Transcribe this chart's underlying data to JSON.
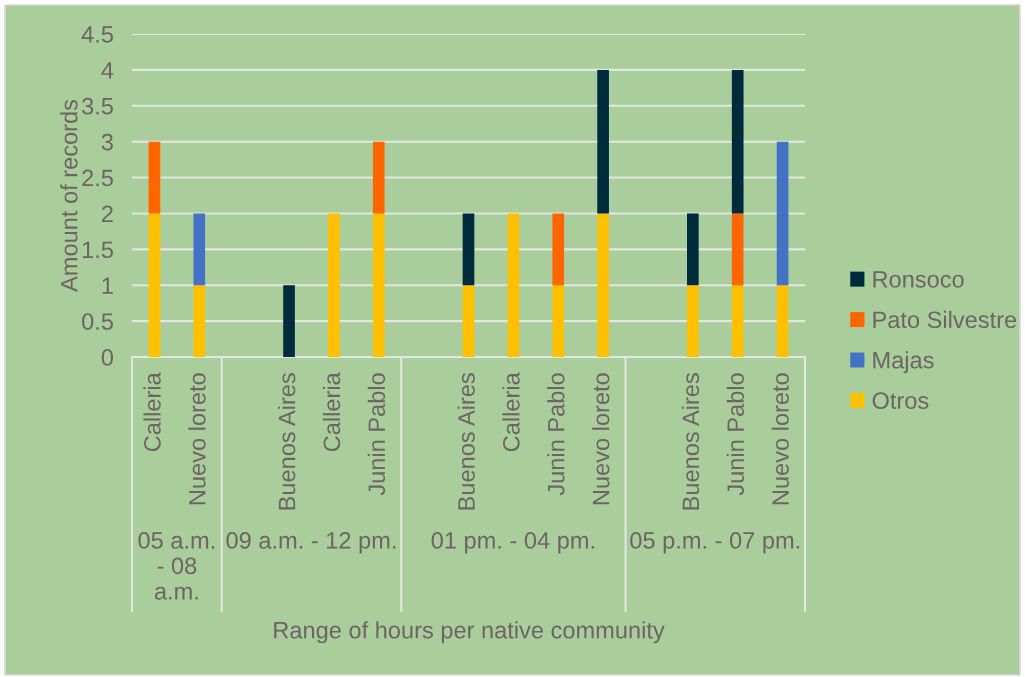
{
  "chart_data": {
    "type": "bar",
    "stacked": true,
    "xlabel": "Range of hours per native community",
    "ylabel": "Amount of records",
    "categories": [
      "Calleria",
      "Nuevo loreto",
      null,
      "Buenos Aires",
      "Calleria",
      "Junin Pablo",
      null,
      "Buenos Aires",
      "Calleria",
      "Junin Pablo",
      "Nuevo loreto",
      null,
      "Buenos Aires",
      "Junin Pablo",
      "Nuevo loreto"
    ],
    "series": [
      {
        "name": "Otros",
        "color": "#ffc000",
        "values": [
          2,
          1,
          null,
          null,
          2,
          2,
          null,
          1,
          2,
          1,
          2,
          null,
          1,
          1,
          1
        ]
      },
      {
        "name": "Majas",
        "color": "#4472c4",
        "values": [
          null,
          1,
          null,
          null,
          null,
          null,
          null,
          null,
          null,
          null,
          null,
          null,
          null,
          null,
          2
        ]
      },
      {
        "name": "Pato Silvestre",
        "color": "#ff6600",
        "values": [
          1,
          null,
          null,
          null,
          null,
          1,
          null,
          null,
          null,
          1,
          null,
          null,
          null,
          1,
          null
        ]
      },
      {
        "name": "Ronsoco",
        "color": "#002b3d",
        "values": [
          null,
          null,
          null,
          1,
          null,
          null,
          null,
          1,
          null,
          null,
          2,
          null,
          1,
          2,
          null
        ]
      }
    ],
    "ylim": [
      0,
      4.5
    ],
    "yticks": [
      0,
      0.5,
      1,
      1.5,
      2,
      2.5,
      3,
      3.5,
      4,
      4.5
    ],
    "grid": "y",
    "legend": "right",
    "annotations": [
      "05 a.m. - 08 a.m.",
      "09 a.m. - 12 pm.",
      "01 pm. - 04 pm.",
      "05 p.m. - 07 pm."
    ]
  }
}
